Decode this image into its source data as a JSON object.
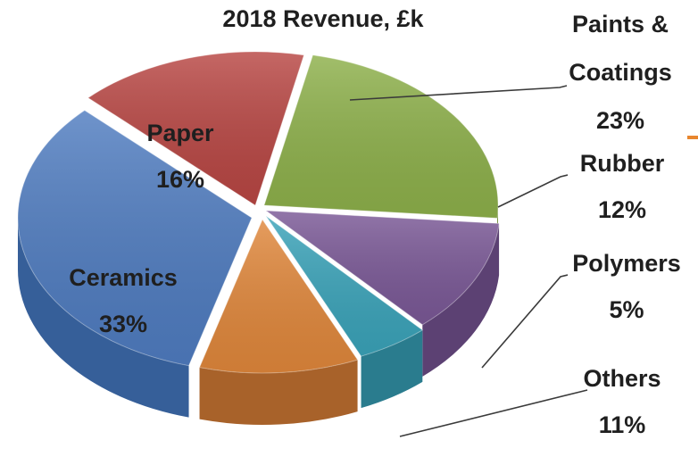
{
  "chart_data": {
    "type": "pie",
    "title": "2018 Revenue, £k",
    "slices": [
      {
        "label": "Paints & Coatings",
        "value": 23,
        "pct_label": "23%",
        "color": "#8db04a",
        "side": "#6f8c37"
      },
      {
        "label": "Rubber",
        "value": 12,
        "pct_label": "12%",
        "color": "#7a5896",
        "side": "#5c4173"
      },
      {
        "label": "Polymers",
        "value": 5,
        "pct_label": "5%",
        "color": "#3aa3b9",
        "side": "#2a7c8e"
      },
      {
        "label": "Others",
        "value": 11,
        "pct_label": "11%",
        "color": "#e0873b",
        "side": "#a8622a"
      },
      {
        "label": "Ceramics",
        "value": 33,
        "pct_label": "33%",
        "color": "#4f7cc0",
        "side": "#365f99"
      },
      {
        "label": "Paper",
        "value": 16,
        "pct_label": "16%",
        "color": "#b84643",
        "side": "#8c3230"
      }
    ],
    "labels": {
      "Paints & Coatings": [
        "Paints &",
        "Coatings",
        "23%"
      ],
      "Rubber": [
        "Rubber",
        "12%"
      ],
      "Polymers": [
        "Polymers",
        "5%"
      ],
      "Others": [
        "Others",
        "11%"
      ],
      "Ceramics": [
        "Ceramics",
        "33%"
      ],
      "Paper": [
        "Paper",
        "16%"
      ]
    },
    "style": "3d-exploded-pie",
    "accent_marker_color": "#e8862e"
  }
}
